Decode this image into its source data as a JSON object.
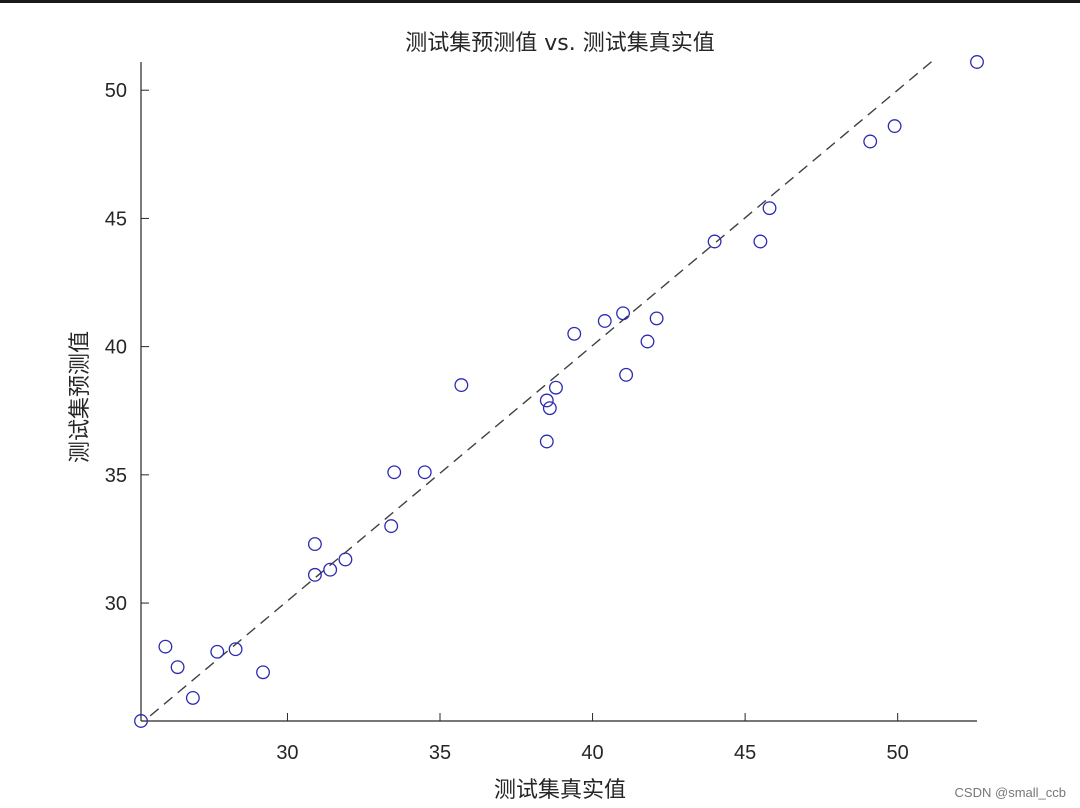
{
  "chart_data": {
    "type": "scatter",
    "title": "测试集预测值 vs. 测试集真实值",
    "xlabel": "测试集真实值",
    "ylabel": "测试集预测值",
    "xlim": [
      25.2,
      52.6
    ],
    "ylim": [
      25.4,
      51.1
    ],
    "xticks": [
      30,
      35,
      40,
      45,
      50
    ],
    "yticks": [
      30,
      35,
      40,
      45,
      50
    ],
    "grid": false,
    "marker_color": "#2b2bb0",
    "reference_line": {
      "style": "dashed",
      "color": "#404040",
      "from": [
        25.5,
        25.6
      ],
      "to": [
        51.2,
        51.2
      ]
    },
    "points": [
      {
        "x": 25.2,
        "y": 25.4
      },
      {
        "x": 26.0,
        "y": 28.3
      },
      {
        "x": 26.4,
        "y": 27.5
      },
      {
        "x": 26.9,
        "y": 26.3
      },
      {
        "x": 27.7,
        "y": 28.1
      },
      {
        "x": 28.3,
        "y": 28.2
      },
      {
        "x": 29.2,
        "y": 27.3
      },
      {
        "x": 30.9,
        "y": 32.3
      },
      {
        "x": 30.9,
        "y": 31.1
      },
      {
        "x": 31.4,
        "y": 31.3
      },
      {
        "x": 31.9,
        "y": 31.7
      },
      {
        "x": 33.4,
        "y": 33.0
      },
      {
        "x": 33.5,
        "y": 35.1
      },
      {
        "x": 34.5,
        "y": 35.1
      },
      {
        "x": 35.7,
        "y": 38.5
      },
      {
        "x": 38.5,
        "y": 36.3
      },
      {
        "x": 38.5,
        "y": 37.9
      },
      {
        "x": 38.6,
        "y": 37.6
      },
      {
        "x": 38.8,
        "y": 38.4
      },
      {
        "x": 39.4,
        "y": 40.5
      },
      {
        "x": 40.4,
        "y": 41.0
      },
      {
        "x": 41.0,
        "y": 41.3
      },
      {
        "x": 41.1,
        "y": 38.9
      },
      {
        "x": 41.8,
        "y": 40.2
      },
      {
        "x": 42.1,
        "y": 41.1
      },
      {
        "x": 44.0,
        "y": 44.1
      },
      {
        "x": 45.5,
        "y": 44.1
      },
      {
        "x": 45.8,
        "y": 45.4
      },
      {
        "x": 49.1,
        "y": 48.0
      },
      {
        "x": 49.9,
        "y": 48.6
      },
      {
        "x": 52.6,
        "y": 51.1
      }
    ]
  },
  "watermark": "CSDN @small_ccb"
}
